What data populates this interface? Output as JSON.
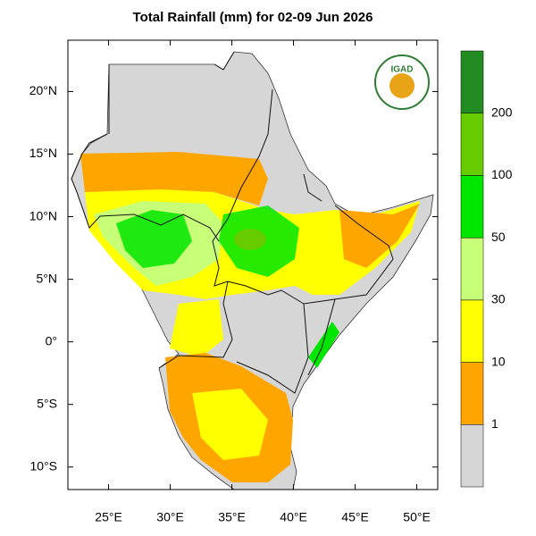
{
  "title": "Total Rainfall (mm) for 02-09 Jun 2026",
  "logo_text": "IGAD",
  "map": {
    "xlim": [
      21.7,
      51.7
    ],
    "ylim": [
      -11.8,
      24.1
    ],
    "xticks": [
      {
        "value": 25,
        "label": "25°E"
      },
      {
        "value": 30,
        "label": "30°E"
      },
      {
        "value": 35,
        "label": "35°E"
      },
      {
        "value": 40,
        "label": "40°E"
      },
      {
        "value": 45,
        "label": "45°E"
      },
      {
        "value": 50,
        "label": "50°E"
      }
    ],
    "yticks": [
      {
        "value": 20,
        "label": "20°N"
      },
      {
        "value": 15,
        "label": "15°N"
      },
      {
        "value": 10,
        "label": "10°N"
      },
      {
        "value": 5,
        "label": "5°N"
      },
      {
        "value": 0,
        "label": "0°"
      },
      {
        "value": -5,
        "label": "5°S"
      },
      {
        "value": -10,
        "label": "10°S"
      }
    ]
  },
  "colorbar": {
    "levels": [
      1,
      10,
      30,
      50,
      100,
      200
    ],
    "colors": [
      "#d6d6d6",
      "#ffa500",
      "#ffff00",
      "#c8ff78",
      "#00e600",
      "#66cc00",
      "#228b22"
    ]
  }
}
